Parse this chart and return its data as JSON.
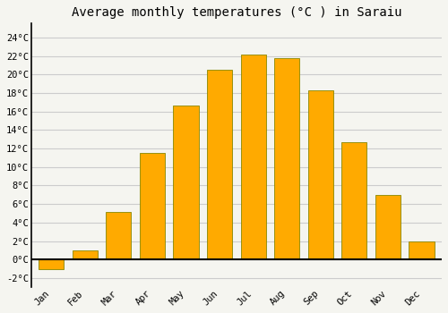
{
  "title": "Average monthly temperatures (°C ) in Saraiu",
  "months": [
    "Jan",
    "Feb",
    "Mar",
    "Apr",
    "May",
    "Jun",
    "Jul",
    "Aug",
    "Sep",
    "Oct",
    "Nov",
    "Dec"
  ],
  "values": [
    -1.0,
    1.0,
    5.1,
    11.5,
    16.6,
    20.5,
    22.1,
    21.8,
    18.3,
    12.7,
    7.0,
    2.0
  ],
  "bar_color": "#FFAA00",
  "bar_edge_color": "#888800",
  "background_color": "#f5f5f0",
  "plot_bg_color": "#f5f5f0",
  "grid_color": "#cccccc",
  "yticks": [
    -2,
    0,
    2,
    4,
    6,
    8,
    10,
    12,
    14,
    16,
    18,
    20,
    22,
    24
  ],
  "ylim": [
    -3.0,
    25.5
  ],
  "xlim": [
    -0.6,
    11.6
  ],
  "title_fontsize": 10,
  "tick_fontsize": 7.5,
  "tick_font_family": "monospace",
  "bar_width": 0.75
}
